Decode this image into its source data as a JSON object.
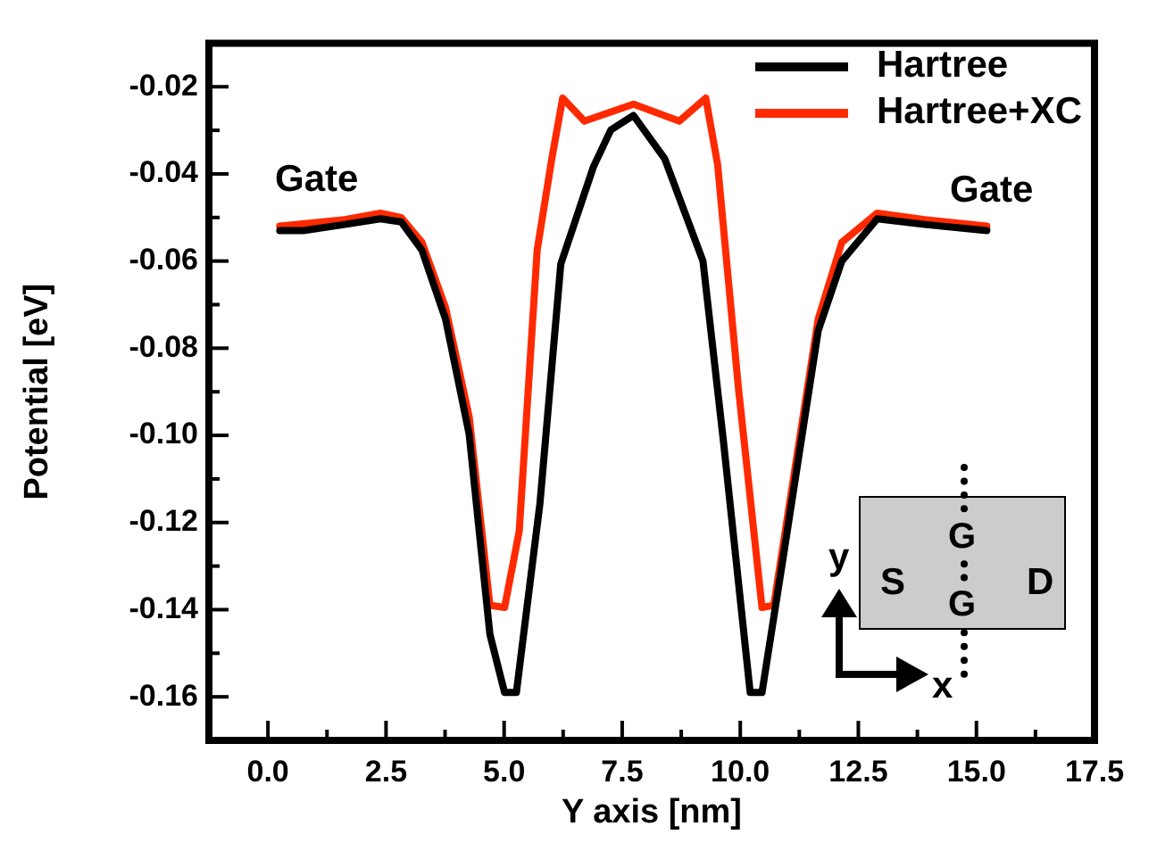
{
  "chart_data": {
    "type": "line",
    "xlabel": "Y axis [nm]",
    "ylabel": "Potential [eV]",
    "xlim": [
      -1.25,
      17.5
    ],
    "ylim": [
      -0.17,
      -0.01
    ],
    "xticks": [
      {
        "value": 0,
        "label": "0.0"
      },
      {
        "value": 1.25,
        "label": null
      },
      2.5,
      {
        "value": 3.75,
        "label": null
      },
      {
        "value": 5,
        "label": "5.0"
      },
      {
        "value": 6.25,
        "label": null
      },
      7.5,
      {
        "value": 8.75,
        "label": null
      },
      {
        "value": 10,
        "label": "10.0"
      },
      {
        "value": 11.25,
        "label": null
      },
      12.5,
      {
        "value": 13.75,
        "label": null
      },
      {
        "value": 15,
        "label": "15.0"
      },
      {
        "value": 16.25,
        "label": null
      },
      17.5
    ],
    "yticks": [
      {
        "value": -0.17,
        "label": null
      },
      -0.16,
      {
        "value": -0.15,
        "label": null
      },
      -0.14,
      {
        "value": -0.13,
        "label": null
      },
      -0.12,
      {
        "value": -0.11,
        "label": null
      },
      {
        "value": -0.1,
        "label": "-0.10"
      },
      {
        "value": -0.09,
        "label": null
      },
      -0.08,
      {
        "value": -0.07,
        "label": null
      },
      -0.06,
      {
        "value": -0.05,
        "label": null
      },
      -0.04,
      {
        "value": -0.03,
        "label": null
      },
      -0.02,
      {
        "value": -0.01,
        "label": null
      }
    ],
    "grid": false,
    "legend": "top right",
    "marker": "none",
    "line_style": "solid",
    "series": [
      {
        "name": "Hartree",
        "color": "#000000",
        "x": [
          0.25,
          0.75,
          1.63,
          2.38,
          2.82,
          3.26,
          3.76,
          4.26,
          4.7,
          5.01,
          5.26,
          5.76,
          6.2,
          6.89,
          7.26,
          7.74,
          8.4,
          9.21,
          9.65,
          10.21,
          10.46,
          10.9,
          11.65,
          12.15,
          12.9,
          13.9,
          15.22
        ],
        "values": [
          -0.053,
          -0.053,
          -0.0516,
          -0.0503,
          -0.051,
          -0.0575,
          -0.0733,
          -0.0997,
          -0.1457,
          -0.159,
          -0.159,
          -0.1155,
          -0.0607,
          -0.0384,
          -0.0299,
          -0.0266,
          -0.0365,
          -0.06,
          -0.102,
          -0.159,
          -0.159,
          -0.1286,
          -0.076,
          -0.06,
          -0.0503,
          -0.0516,
          -0.053
        ]
      },
      {
        "name": "Hartree+XC",
        "color": "#ff2a00",
        "x": [
          0.25,
          1.63,
          2.38,
          2.82,
          3.26,
          3.76,
          4.26,
          4.7,
          5.01,
          5.32,
          5.7,
          6.01,
          6.24,
          6.7,
          7.74,
          8.71,
          9.27,
          9.52,
          9.96,
          10.46,
          10.71,
          11.65,
          12.15,
          12.9,
          13.9,
          15.22
        ],
        "values": [
          -0.052,
          -0.0505,
          -0.049,
          -0.05,
          -0.0557,
          -0.0707,
          -0.0957,
          -0.139,
          -0.1395,
          -0.122,
          -0.0575,
          -0.0365,
          -0.0226,
          -0.0279,
          -0.024,
          -0.0279,
          -0.0226,
          -0.0378,
          -0.089,
          -0.1395,
          -0.139,
          -0.0733,
          -0.0557,
          -0.049,
          -0.0505,
          -0.052
        ]
      }
    ],
    "annotations": [
      "Gate",
      "Gate",
      "S",
      "D",
      "G",
      "G",
      "y",
      "x"
    ]
  }
}
